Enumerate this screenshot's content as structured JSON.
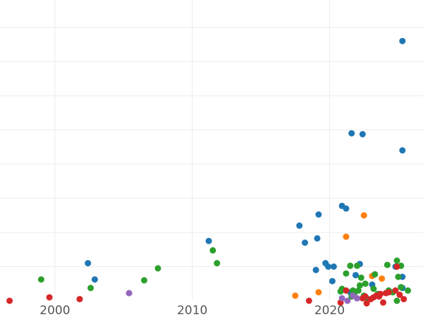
{
  "chart_data": {
    "type": "scatter",
    "title": "",
    "xlabel": "",
    "ylabel": "",
    "xlim": [
      1996,
      2026.8
    ],
    "ylim": [
      0,
      17.6
    ],
    "x_ticks": [
      {
        "value": 2000,
        "label": "2000"
      },
      {
        "value": 2010,
        "label": "2010"
      },
      {
        "value": 2020,
        "label": "2020"
      }
    ],
    "y_gridlines": [
      2,
      4,
      6,
      8,
      10,
      12,
      14,
      16
    ],
    "grid": true,
    "legend": "none",
    "series_colors": [
      "#1f77b4",
      "#ff7f0e",
      "#2ca02c",
      "#d62728",
      "#9467bd"
    ],
    "series": [
      {
        "color": "#1f77b4",
        "points": [
          [
            2002.4,
            2.2
          ],
          [
            2002.9,
            1.25
          ],
          [
            2011.2,
            3.5
          ],
          [
            2017.8,
            4.4
          ],
          [
            2018.2,
            3.4
          ],
          [
            2019.1,
            3.65
          ],
          [
            2019.2,
            5.05
          ],
          [
            2019.7,
            2.2
          ],
          [
            2019.9,
            2.0
          ],
          [
            2020.3,
            2.0
          ],
          [
            2020.9,
            5.55
          ],
          [
            2021.2,
            5.4
          ],
          [
            2021.6,
            9.8
          ],
          [
            2022.2,
            2.15
          ],
          [
            2022.4,
            9.75
          ],
          [
            2024.8,
            2.0
          ],
          [
            2025.3,
            15.2
          ],
          [
            2025.3,
            8.8
          ],
          [
            2025.3,
            1.4
          ],
          [
            2020.2,
            1.15
          ],
          [
            2021.9,
            1.5
          ],
          [
            2023.1,
            0.95
          ],
          [
            2025.3,
            0.75
          ],
          [
            2019.0,
            1.8
          ],
          [
            2021.5,
            0.5
          ]
        ]
      },
      {
        "color": "#ff7f0e",
        "points": [
          [
            2017.5,
            0.3
          ],
          [
            2019.2,
            0.5
          ],
          [
            2021.2,
            3.75
          ],
          [
            2022.5,
            5.0
          ],
          [
            2023.1,
            1.45
          ],
          [
            2023.8,
            1.3
          ]
        ]
      },
      {
        "color": "#2ca02c",
        "points": [
          [
            1999.0,
            1.25
          ],
          [
            2002.6,
            0.75
          ],
          [
            2006.5,
            1.2
          ],
          [
            2007.5,
            1.9
          ],
          [
            2011.5,
            2.95
          ],
          [
            2011.8,
            2.2
          ],
          [
            2020.8,
            0.55
          ],
          [
            2021.2,
            1.6
          ],
          [
            2021.5,
            2.05
          ],
          [
            2021.8,
            0.45
          ],
          [
            2022.0,
            2.05
          ],
          [
            2022.2,
            0.9
          ],
          [
            2022.3,
            1.35
          ],
          [
            2022.5,
            0.3
          ],
          [
            2022.7,
            0.15
          ],
          [
            2023.2,
            0.7
          ],
          [
            2023.3,
            1.55
          ],
          [
            2024.2,
            2.1
          ],
          [
            2024.9,
            2.35
          ],
          [
            2025.0,
            1.4
          ],
          [
            2025.2,
            2.05
          ],
          [
            2025.2,
            0.8
          ],
          [
            2025.7,
            0.6
          ],
          [
            2020.9,
            0.7
          ],
          [
            2021.6,
            0.25
          ],
          [
            2022.1,
            0.6
          ],
          [
            2023.5,
            0.4
          ],
          [
            2024.6,
            0.5
          ],
          [
            2024.9,
            0.0
          ],
          [
            2021.7,
            0.6
          ],
          [
            2022.6,
            1.0
          ],
          [
            2024.3,
            0.6
          ]
        ]
      },
      {
        "color": "#d62728",
        "points": [
          [
            1996.7,
            0.0
          ],
          [
            1999.6,
            0.2
          ],
          [
            2001.8,
            0.1
          ],
          [
            2018.5,
            0.0
          ],
          [
            2020.8,
            -0.1
          ],
          [
            2021.2,
            0.6
          ],
          [
            2022.6,
            0.25
          ],
          [
            2022.7,
            -0.15
          ],
          [
            2023.0,
            0.1
          ],
          [
            2023.4,
            0.3
          ],
          [
            2023.7,
            0.4
          ],
          [
            2023.9,
            -0.1
          ],
          [
            2024.3,
            0.5
          ],
          [
            2024.8,
            0.6
          ],
          [
            2024.9,
            2.0
          ],
          [
            2025.4,
            0.1
          ],
          [
            2022.4,
            0.15
          ],
          [
            2023.2,
            0.2
          ],
          [
            2023.6,
            0.25
          ],
          [
            2024.1,
            0.45
          ],
          [
            2025.1,
            0.35
          ]
        ]
      },
      {
        "color": "#9467bd",
        "points": [
          [
            2005.4,
            0.45
          ],
          [
            2020.9,
            0.15
          ],
          [
            2021.3,
            0.0
          ],
          [
            2021.7,
            0.3
          ],
          [
            2022.0,
            0.15
          ]
        ]
      }
    ]
  }
}
